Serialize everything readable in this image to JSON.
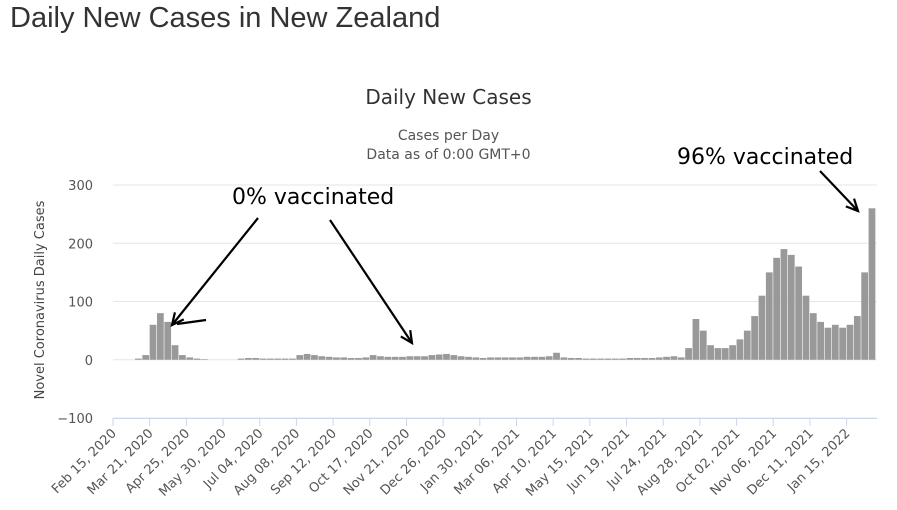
{
  "page": {
    "title": "Daily New Cases in New Zealand"
  },
  "chart_data": {
    "type": "bar",
    "title": "Daily New Cases",
    "subtitle_lines": [
      "Cases per Day",
      "Data as of 0:00 GMT+0"
    ],
    "ylabel": "Novel Coronavirus Daily Cases",
    "xlabel": "",
    "ylim": [
      -100,
      300
    ],
    "yticks": [
      -100,
      0,
      100,
      200,
      300
    ],
    "xlim": [
      "2020-02-15",
      "2022-02-13"
    ],
    "xticks": [
      "Feb 15, 2020",
      "Mar 21, 2020",
      "Apr 25, 2020",
      "May 30, 2020",
      "Jul 04, 2020",
      "Aug 08, 2020",
      "Sep 12, 2020",
      "Oct 17, 2020",
      "Nov 21, 2020",
      "Dec 26, 2020",
      "Jan 30, 2021",
      "Mar 06, 2021",
      "Apr 10, 2021",
      "May 15, 2021",
      "Jun 19, 2021",
      "Jul 24, 2021",
      "Aug 28, 2021",
      "Oct 02, 2021",
      "Nov 06, 2021",
      "Dec 11, 2021",
      "Jan 15, 2022"
    ],
    "grid": true,
    "bar_color": "#999999",
    "series": [
      {
        "weekly_approx_daily_values": [
          {
            "week_of": "2020-02-15",
            "value": 0
          },
          {
            "week_of": "2020-02-22",
            "value": 0
          },
          {
            "week_of": "2020-02-29",
            "value": 0
          },
          {
            "week_of": "2020-03-07",
            "value": 2
          },
          {
            "week_of": "2020-03-14",
            "value": 8
          },
          {
            "week_of": "2020-03-21",
            "value": 60
          },
          {
            "week_of": "2020-03-28",
            "value": 80
          },
          {
            "week_of": "2020-04-04",
            "value": 65
          },
          {
            "week_of": "2020-04-11",
            "value": 25
          },
          {
            "week_of": "2020-04-18",
            "value": 8
          },
          {
            "week_of": "2020-04-25",
            "value": 4
          },
          {
            "week_of": "2020-05-02",
            "value": 2
          },
          {
            "week_of": "2020-05-09",
            "value": 1
          },
          {
            "week_of": "2020-05-16",
            "value": 0
          },
          {
            "week_of": "2020-05-23",
            "value": 0
          },
          {
            "week_of": "2020-05-30",
            "value": 0
          },
          {
            "week_of": "2020-06-06",
            "value": 0
          },
          {
            "week_of": "2020-06-13",
            "value": 2
          },
          {
            "week_of": "2020-06-20",
            "value": 3
          },
          {
            "week_of": "2020-06-27",
            "value": 3
          },
          {
            "week_of": "2020-07-04",
            "value": 2
          },
          {
            "week_of": "2020-07-11",
            "value": 2
          },
          {
            "week_of": "2020-07-18",
            "value": 2
          },
          {
            "week_of": "2020-07-25",
            "value": 2
          },
          {
            "week_of": "2020-08-01",
            "value": 2
          },
          {
            "week_of": "2020-08-08",
            "value": 8
          },
          {
            "week_of": "2020-08-15",
            "value": 10
          },
          {
            "week_of": "2020-08-22",
            "value": 8
          },
          {
            "week_of": "2020-08-29",
            "value": 6
          },
          {
            "week_of": "2020-09-05",
            "value": 5
          },
          {
            "week_of": "2020-09-12",
            "value": 4
          },
          {
            "week_of": "2020-09-19",
            "value": 4
          },
          {
            "week_of": "2020-09-26",
            "value": 3
          },
          {
            "week_of": "2020-10-03",
            "value": 3
          },
          {
            "week_of": "2020-10-10",
            "value": 4
          },
          {
            "week_of": "2020-10-17",
            "value": 8
          },
          {
            "week_of": "2020-10-24",
            "value": 6
          },
          {
            "week_of": "2020-10-31",
            "value": 5
          },
          {
            "week_of": "2020-11-07",
            "value": 5
          },
          {
            "week_of": "2020-11-14",
            "value": 5
          },
          {
            "week_of": "2020-11-21",
            "value": 6
          },
          {
            "week_of": "2020-11-28",
            "value": 6
          },
          {
            "week_of": "2020-12-05",
            "value": 6
          },
          {
            "week_of": "2020-12-12",
            "value": 8
          },
          {
            "week_of": "2020-12-19",
            "value": 9
          },
          {
            "week_of": "2020-12-26",
            "value": 10
          },
          {
            "week_of": "2021-01-02",
            "value": 8
          },
          {
            "week_of": "2021-01-09",
            "value": 6
          },
          {
            "week_of": "2021-01-16",
            "value": 5
          },
          {
            "week_of": "2021-01-23",
            "value": 4
          },
          {
            "week_of": "2021-01-30",
            "value": 3
          },
          {
            "week_of": "2021-02-06",
            "value": 4
          },
          {
            "week_of": "2021-02-13",
            "value": 4
          },
          {
            "week_of": "2021-02-20",
            "value": 4
          },
          {
            "week_of": "2021-02-27",
            "value": 4
          },
          {
            "week_of": "2021-03-06",
            "value": 4
          },
          {
            "week_of": "2021-03-13",
            "value": 5
          },
          {
            "week_of": "2021-03-20",
            "value": 5
          },
          {
            "week_of": "2021-03-27",
            "value": 5
          },
          {
            "week_of": "2021-04-03",
            "value": 6
          },
          {
            "week_of": "2021-04-10",
            "value": 12
          },
          {
            "week_of": "2021-04-17",
            "value": 4
          },
          {
            "week_of": "2021-04-24",
            "value": 3
          },
          {
            "week_of": "2021-05-01",
            "value": 3
          },
          {
            "week_of": "2021-05-08",
            "value": 2
          },
          {
            "week_of": "2021-05-15",
            "value": 2
          },
          {
            "week_of": "2021-05-22",
            "value": 2
          },
          {
            "week_of": "2021-05-29",
            "value": 2
          },
          {
            "week_of": "2021-06-05",
            "value": 2
          },
          {
            "week_of": "2021-06-12",
            "value": 2
          },
          {
            "week_of": "2021-06-19",
            "value": 3
          },
          {
            "week_of": "2021-06-26",
            "value": 3
          },
          {
            "week_of": "2021-07-03",
            "value": 3
          },
          {
            "week_of": "2021-07-10",
            "value": 3
          },
          {
            "week_of": "2021-07-17",
            "value": 4
          },
          {
            "week_of": "2021-07-24",
            "value": 5
          },
          {
            "week_of": "2021-07-31",
            "value": 6
          },
          {
            "week_of": "2021-08-07",
            "value": 4
          },
          {
            "week_of": "2021-08-14",
            "value": 20
          },
          {
            "week_of": "2021-08-21",
            "value": 70
          },
          {
            "week_of": "2021-08-28",
            "value": 50
          },
          {
            "week_of": "2021-09-04",
            "value": 25
          },
          {
            "week_of": "2021-09-11",
            "value": 20
          },
          {
            "week_of": "2021-09-18",
            "value": 20
          },
          {
            "week_of": "2021-09-25",
            "value": 25
          },
          {
            "week_of": "2021-10-02",
            "value": 35
          },
          {
            "week_of": "2021-10-09",
            "value": 50
          },
          {
            "week_of": "2021-10-16",
            "value": 75
          },
          {
            "week_of": "2021-10-23",
            "value": 110
          },
          {
            "week_of": "2021-10-30",
            "value": 150
          },
          {
            "week_of": "2021-11-06",
            "value": 175
          },
          {
            "week_of": "2021-11-13",
            "value": 190
          },
          {
            "week_of": "2021-11-20",
            "value": 180
          },
          {
            "week_of": "2021-11-27",
            "value": 160
          },
          {
            "week_of": "2021-12-04",
            "value": 110
          },
          {
            "week_of": "2021-12-11",
            "value": 80
          },
          {
            "week_of": "2021-12-18",
            "value": 65
          },
          {
            "week_of": "2021-12-25",
            "value": 55
          },
          {
            "week_of": "2022-01-01",
            "value": 60
          },
          {
            "week_of": "2022-01-08",
            "value": 55
          },
          {
            "week_of": "2022-01-15",
            "value": 60
          },
          {
            "week_of": "2022-01-22",
            "value": 75
          },
          {
            "week_of": "2022-01-29",
            "value": 150
          },
          {
            "week_of": "2022-02-05",
            "value": 260
          }
        ]
      }
    ],
    "annotations": [
      {
        "text": "0% vaccinated"
      },
      {
        "text": "96% vaccinated"
      }
    ]
  }
}
